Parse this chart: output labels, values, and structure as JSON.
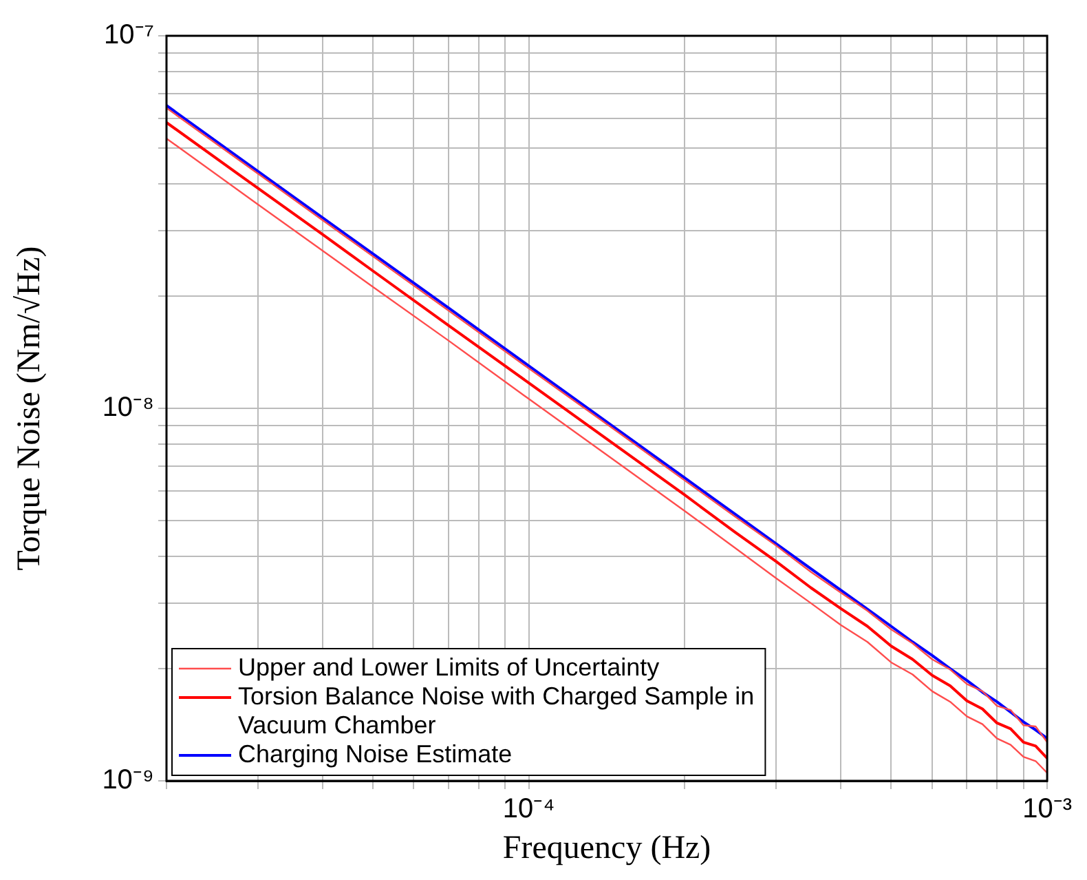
{
  "chart_data": {
    "type": "line",
    "xlabel": "Frequency (Hz)",
    "ylabel": "Torque Noise (Nm/√Hz)",
    "log": "xy",
    "grid": true,
    "legend": "bottom left",
    "marker": "none",
    "line_style": "solid",
    "xlim": [
      2e-05,
      0.001
    ],
    "ylim": [
      1e-09,
      1e-07
    ],
    "xticks": [
      {
        "value": 2e-05,
        "label": null
      },
      {
        "value": 3e-05,
        "label": null
      },
      {
        "value": 4e-05,
        "label": null
      },
      {
        "value": 5e-05,
        "label": null
      },
      {
        "value": 6e-05,
        "label": null
      },
      {
        "value": 7e-05,
        "label": null
      },
      {
        "value": 8e-05,
        "label": null
      },
      {
        "value": 9e-05,
        "label": null
      },
      {
        "value": 0.0001,
        "label": "10⁻⁴"
      },
      {
        "value": 0.0002,
        "label": null
      },
      {
        "value": 0.0003,
        "label": null
      },
      {
        "value": 0.0004,
        "label": null
      },
      {
        "value": 0.0005,
        "label": null
      },
      {
        "value": 0.0006,
        "label": null
      },
      {
        "value": 0.0007,
        "label": null
      },
      {
        "value": 0.0008,
        "label": null
      },
      {
        "value": 0.0009,
        "label": null
      },
      {
        "value": 0.001,
        "label": "10⁻³"
      }
    ],
    "yticks": [
      {
        "value": 1e-09,
        "label": "10⁻⁹"
      },
      {
        "value": 2e-09,
        "label": null
      },
      {
        "value": 3e-09,
        "label": null
      },
      {
        "value": 4e-09,
        "label": null
      },
      {
        "value": 5e-09,
        "label": null
      },
      {
        "value": 6e-09,
        "label": null
      },
      {
        "value": 7e-09,
        "label": null
      },
      {
        "value": 8e-09,
        "label": null
      },
      {
        "value": 9e-09,
        "label": null
      },
      {
        "value": 1e-08,
        "label": "10⁻⁸"
      },
      {
        "value": 2e-08,
        "label": null
      },
      {
        "value": 3e-08,
        "label": null
      },
      {
        "value": 4e-08,
        "label": null
      },
      {
        "value": 5e-08,
        "label": null
      },
      {
        "value": 6e-08,
        "label": null
      },
      {
        "value": 7e-08,
        "label": null
      },
      {
        "value": 8e-08,
        "label": null
      },
      {
        "value": 9e-08,
        "label": null
      },
      {
        "value": 1e-07,
        "label": "10⁻⁷"
      }
    ],
    "x": [
      2e-05,
      3e-05,
      4e-05,
      5e-05,
      7e-05,
      0.0001,
      0.00015,
      0.0002,
      0.00025,
      0.0003,
      0.00035,
      0.0004,
      0.00045,
      0.0005,
      0.00055,
      0.0006,
      0.00065,
      0.0007,
      0.00075,
      0.0008,
      0.00085,
      0.0009,
      0.00095,
      0.001
    ],
    "series": [
      {
        "color": "#ff4d4d",
        "values": [
          6.4e-08,
          4.27e-08,
          3.2e-08,
          2.56e-08,
          1.83e-08,
          1.28e-08,
          8.55e-09,
          6.4e-09,
          5.12e-09,
          4.28e-09,
          3.64e-09,
          3.2e-09,
          2.86e-09,
          2.55e-09,
          2.34e-09,
          2.12e-09,
          1.99e-09,
          1.82e-09,
          1.74e-09,
          1.59e-09,
          1.55e-09,
          1.41e-09,
          1.4e-09,
          1.27e-09
        ]
      },
      {
        "name": "Upper and Lower Limits of Uncertainty",
        "color": "#ff4d4d",
        "values": [
          5.3e-08,
          3.53e-08,
          2.65e-08,
          2.12e-08,
          1.52e-08,
          1.06e-08,
          7.07e-09,
          5.3e-09,
          4.22e-09,
          3.5e-09,
          3e-09,
          2.62e-09,
          2.36e-09,
          2.08e-09,
          1.93e-09,
          1.74e-09,
          1.63e-09,
          1.49e-09,
          1.42e-09,
          1.3e-09,
          1.25e-09,
          1.16e-09,
          1.13e-09,
          1.05e-09
        ]
      },
      {
        "name": "Torsion Balance Noise with Charged Sample in Vacuum Chamber",
        "color": "#ff0000",
        "values": [
          5.85e-08,
          3.9e-08,
          2.93e-08,
          2.34e-08,
          1.67e-08,
          1.17e-08,
          7.8e-09,
          5.85e-09,
          4.65e-09,
          3.88e-09,
          3.3e-09,
          2.9e-09,
          2.6e-09,
          2.3e-09,
          2.12e-09,
          1.92e-09,
          1.8e-09,
          1.64e-09,
          1.56e-09,
          1.43e-09,
          1.38e-09,
          1.27e-09,
          1.24e-09,
          1.15e-09
        ]
      },
      {
        "name": "Charging Noise Estimate",
        "color": "#0000ff",
        "values": [
          6.5e-08,
          4.33e-08,
          3.25e-08,
          2.6e-08,
          1.86e-08,
          1.3e-08,
          8.67e-09,
          6.5e-09,
          5.2e-09,
          4.33e-09,
          3.71e-09,
          3.25e-09,
          2.89e-09,
          2.6e-09,
          2.36e-09,
          2.17e-09,
          2e-09,
          1.86e-09,
          1.73e-09,
          1.63e-09,
          1.53e-09,
          1.44e-09,
          1.37e-09,
          1.3e-09
        ]
      }
    ]
  }
}
